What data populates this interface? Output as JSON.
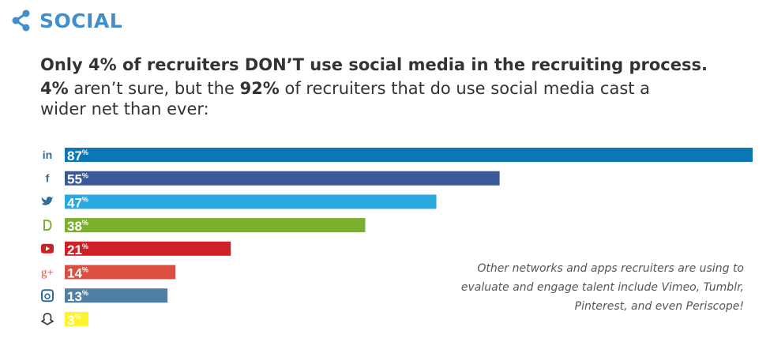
{
  "header": {
    "title": "SOCIAL",
    "icon": "share-icon",
    "color": "#3f8fcc"
  },
  "headline": "Only 4% of recruiters DON’T use social media in the recruiting process.",
  "subline": {
    "part1": "4%",
    "part2": " aren’t sure, but the ",
    "part3": "92%",
    "part4": " of recruiters that do use social media cast a wider net than ever:"
  },
  "note": "Other networks and apps recruiters are using to evaluate and engage talent include Vimeo, Tumblr, Pinterest, and even Periscope!",
  "chart_data": {
    "type": "bar",
    "orientation": "horizontal",
    "categories": [
      "linkedin-icon",
      "facebook-icon",
      "twitter-icon",
      "glassdoor-icon",
      "youtube-icon",
      "google-plus-icon",
      "instagram-icon",
      "snapchat-icon"
    ],
    "values": [
      87,
      55,
      47,
      38,
      21,
      14,
      13,
      3
    ],
    "value_labels": [
      "87",
      "55",
      "47",
      "38",
      "21",
      "14",
      "13",
      "3"
    ],
    "unit": "%",
    "colors": [
      "#0b77b5",
      "#3b5898",
      "#2aa9e0",
      "#7ab02b",
      "#cd2127",
      "#dc4e3f",
      "#517fa4",
      "#fdf42f"
    ],
    "xlim": [
      0,
      87
    ],
    "grid": false,
    "legend": "none"
  }
}
